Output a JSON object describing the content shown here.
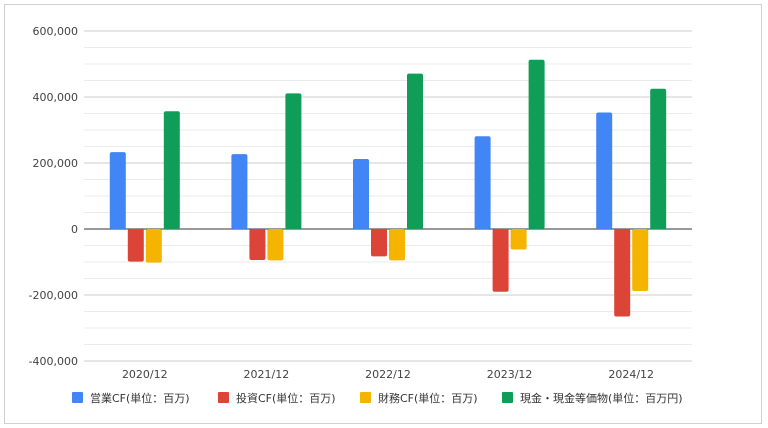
{
  "chart_data": {
    "type": "bar",
    "categories": [
      "2020/12",
      "2021/12",
      "2022/12",
      "2023/12",
      "2024/12"
    ],
    "series": [
      {
        "name": "営業CF(単位：百万)",
        "color": "#4285F4",
        "values": [
          233000,
          227000,
          212000,
          281000,
          353000
        ]
      },
      {
        "name": "投資CF(単位：百万)",
        "color": "#DB4437",
        "values": [
          -99000,
          -94000,
          -83000,
          -190000,
          -265000
        ]
      },
      {
        "name": "財務CF(単位：百万)",
        "color": "#F4B400",
        "values": [
          -102000,
          -95000,
          -95000,
          -62000,
          -188000
        ]
      },
      {
        "name": "現金・現金等価物(単位：百万円)",
        "color": "#0F9D58",
        "values": [
          357000,
          411000,
          471000,
          513000,
          425000
        ]
      }
    ],
    "yticks": [
      "600,000",
      "400,000",
      "200,000",
      "0",
      "-200,000",
      "-400,000"
    ],
    "ylim": [
      -400000,
      600000
    ],
    "grid": true,
    "legend_position": "bottom"
  }
}
